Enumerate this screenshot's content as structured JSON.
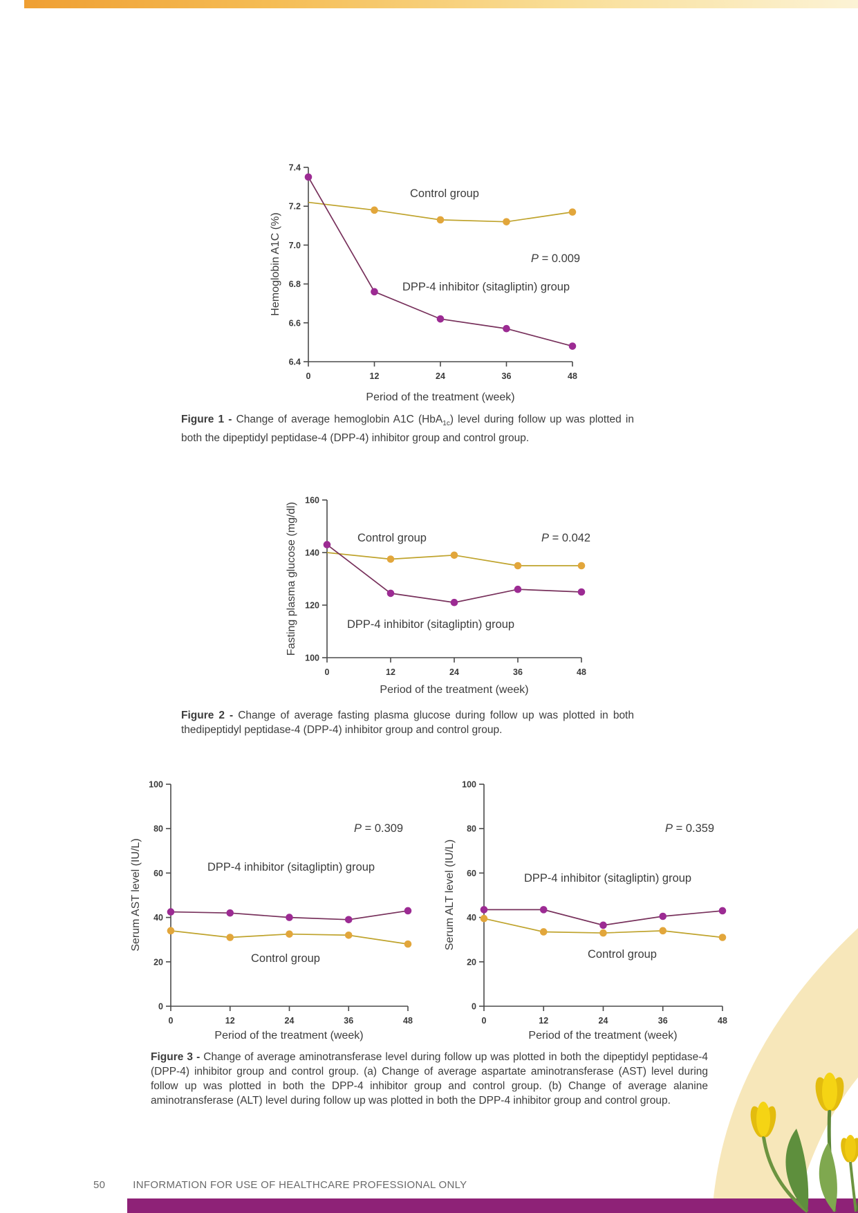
{
  "page": {
    "footer": {
      "page_number": "50",
      "text": "INFORMATION FOR USE OF HEALTHCARE PROFESSIONAL ONLY"
    }
  },
  "colors": {
    "control_marker": "#E2A63B",
    "control_line": "#BFA32C",
    "treatment_marker": "#9C2B93",
    "treatment_line": "#77305B",
    "axis": "#4a4a4a",
    "bottom_bar": "#8E2277",
    "top_bar_left": "#EF9F33",
    "top_bar_right": "#FCF3D5",
    "arc_decoration": "#F7E7BA",
    "tulip_yellow": "#F5D414"
  },
  "figures": [
    {
      "caption": {
        "label": "Figure 1",
        "sep": " - ",
        "part1": "Change of average hemoglobin A1C (HbA",
        "sub": "1c",
        "part2": ") level during follow up was plotted in both the dipeptidyl peptidase-4 (DPP-4) inhibitor group and control group."
      }
    },
    {
      "caption": {
        "label": "Figure 2",
        "sep": " - ",
        "part1": "Change of average fasting plasma glucose during follow up was plotted in both thedipeptidyl peptidase-4 (DPP-4) inhibitor group and control group."
      }
    },
    {
      "caption": {
        "label": "Figure 3",
        "sep": " - ",
        "part1": "Change of average aminotransferase level during follow up was plotted in both the dipeptidyl peptidase-4 (DPP-4) inhibitor group and control group. (a) Change of average aspartate aminotransferase (AST) level during follow up was plotted in both the DPP-4 inhibitor group and control group. (b) Change of average alanine aminotransferase (ALT) level during follow up was plotted in both the DPP-4 inhibitor group and control group."
      }
    }
  ],
  "chart_data": [
    {
      "id": "hba1c",
      "type": "line",
      "title": "",
      "xlabel": "Period of the treatment (week)",
      "ylabel": "Hemoglobin A1C (%)",
      "x": [
        0,
        12,
        24,
        36,
        48
      ],
      "xticks": [
        0,
        12,
        24,
        36,
        48
      ],
      "xlim": [
        0,
        48
      ],
      "ylim": [
        6.4,
        7.4
      ],
      "yticks": [
        6.4,
        6.6,
        6.8,
        7.0,
        7.2,
        7.4
      ],
      "ytick_labels": [
        "6.4",
        "6.6",
        "6.8",
        "7.0",
        "7.2",
        "7.4"
      ],
      "grid": false,
      "legend_position": "inline-annotations",
      "series": [
        {
          "name": "Control group",
          "values": [
            7.22,
            7.18,
            7.13,
            7.12,
            7.17
          ],
          "marker_color": "#E2A63B",
          "line_color": "#BFA32C",
          "marker_first": false
        },
        {
          "name": "DPP-4 inhibitor (sitagliptin) group",
          "values": [
            7.35,
            6.76,
            6.62,
            6.57,
            6.48
          ],
          "marker_color": "#9C2B93",
          "line_color": "#77305B",
          "marker_first": true
        }
      ],
      "p_symbol": "P",
      "p_text": " = 0.009",
      "p_value": 0.009
    },
    {
      "id": "fasting-plasma-glucose",
      "type": "line",
      "title": "",
      "xlabel": "Period of the treatment (week)",
      "ylabel": "Fasting plasma glucose (mg/dl)",
      "x": [
        0,
        12,
        24,
        36,
        48
      ],
      "xticks": [
        0,
        12,
        24,
        36,
        48
      ],
      "xlim": [
        0,
        48
      ],
      "ylim": [
        100,
        160
      ],
      "yticks": [
        100,
        120,
        140,
        160
      ],
      "ytick_labels": [
        "100",
        "120",
        "140",
        "160"
      ],
      "grid": false,
      "legend_position": "inline-annotations",
      "series": [
        {
          "name": "Control group",
          "values": [
            140,
            137.5,
            139,
            135,
            135
          ],
          "marker_color": "#E2A63B",
          "line_color": "#BFA32C",
          "marker_first": false
        },
        {
          "name": "DPP-4 inhibitor (sitagliptin) group",
          "values": [
            143,
            124.5,
            121,
            126,
            125
          ],
          "marker_color": "#9C2B93",
          "line_color": "#77305B",
          "marker_first": true
        }
      ],
      "p_symbol": "P",
      "p_text": " = 0.042",
      "p_value": 0.042
    },
    {
      "id": "serum-ast",
      "type": "line",
      "title": "",
      "xlabel": "Period of the treatment (week)",
      "ylabel": "Serum AST level (IU/L)",
      "x": [
        0,
        12,
        24,
        36,
        48
      ],
      "xticks": [
        0,
        12,
        24,
        36,
        48
      ],
      "xlim": [
        0,
        48
      ],
      "ylim": [
        0,
        100
      ],
      "yticks": [
        0,
        20,
        40,
        60,
        80,
        100
      ],
      "ytick_labels": [
        "0",
        "20",
        "40",
        "60",
        "80",
        "100"
      ],
      "grid": false,
      "legend_position": "inline-annotations",
      "series": [
        {
          "name": "Control group",
          "values": [
            34,
            31,
            32.5,
            32,
            28
          ],
          "marker_color": "#E2A63B",
          "line_color": "#BFA32C",
          "marker_first": true
        },
        {
          "name": "DPP-4 inhibitor (sitagliptin) group",
          "values": [
            42.5,
            42,
            40,
            39,
            43
          ],
          "marker_color": "#9C2B93",
          "line_color": "#77305B",
          "marker_first": true
        }
      ],
      "p_symbol": "P",
      "p_text": " = 0.309",
      "p_value": 0.309
    },
    {
      "id": "serum-alt",
      "type": "line",
      "title": "",
      "xlabel": "Period of the treatment (week)",
      "ylabel": "Serum ALT level (IU/L)",
      "x": [
        0,
        12,
        24,
        36,
        48
      ],
      "xticks": [
        0,
        12,
        24,
        36,
        48
      ],
      "xlim": [
        0,
        48
      ],
      "ylim": [
        0,
        100
      ],
      "yticks": [
        0,
        20,
        40,
        60,
        80,
        100
      ],
      "ytick_labels": [
        "0",
        "20",
        "40",
        "60",
        "80",
        "100"
      ],
      "grid": false,
      "legend_position": "inline-annotations",
      "series": [
        {
          "name": "Control group",
          "values": [
            39.5,
            33.5,
            33,
            34,
            31
          ],
          "marker_color": "#E2A63B",
          "line_color": "#BFA32C",
          "marker_first": true
        },
        {
          "name": "DPP-4 inhibitor (sitagliptin) group",
          "values": [
            43.5,
            43.5,
            36.5,
            40.5,
            43
          ],
          "marker_color": "#9C2B93",
          "line_color": "#77305B",
          "marker_first": true
        }
      ],
      "p_symbol": "P",
      "p_text": " = 0.359",
      "p_value": 0.359
    }
  ]
}
